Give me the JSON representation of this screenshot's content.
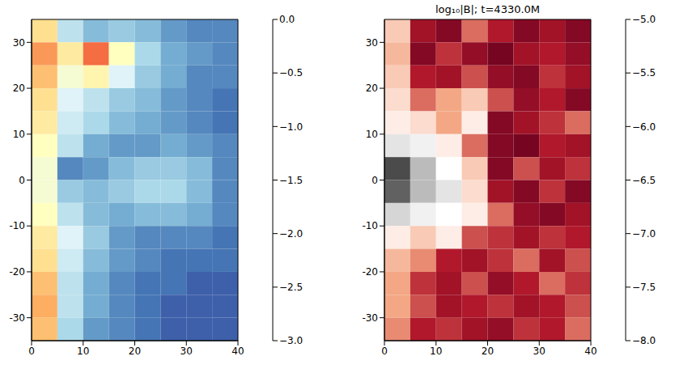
{
  "chart_data": [
    {
      "type": "heatmap",
      "xlim": [
        0,
        40
      ],
      "ylim": [
        -35,
        35
      ],
      "xticks": [
        0,
        10,
        20,
        30,
        40
      ],
      "yticks": [
        -30,
        -20,
        -10,
        0,
        10,
        20,
        30
      ],
      "x_edges": [
        0,
        5,
        10,
        15,
        20,
        25,
        30,
        35,
        40
      ],
      "y_edges": [
        35,
        30,
        25,
        20,
        15,
        10,
        5,
        0,
        -5,
        -10,
        -15,
        -20,
        -25,
        -30,
        -35
      ],
      "cells": [
        [
          -1.2,
          -2.0,
          -2.3,
          -2.2,
          -2.3,
          -2.5,
          -2.6,
          -2.6
        ],
        [
          -0.8,
          -1.3,
          -0.6,
          -1.5,
          -2.1,
          -2.4,
          -2.5,
          -2.6
        ],
        [
          -1.0,
          -1.6,
          -1.4,
          -1.8,
          -2.2,
          -2.4,
          -2.6,
          -2.6
        ],
        [
          -1.2,
          -1.8,
          -2.0,
          -2.2,
          -2.3,
          -2.5,
          -2.6,
          -2.7
        ],
        [
          -1.3,
          -1.9,
          -2.1,
          -2.3,
          -2.4,
          -2.5,
          -2.6,
          -2.7
        ],
        [
          -1.5,
          -2.0,
          -2.4,
          -2.5,
          -2.5,
          -2.4,
          -2.5,
          -2.6
        ],
        [
          -1.6,
          -2.6,
          -2.5,
          -2.3,
          -2.2,
          -2.2,
          -2.3,
          -2.6
        ],
        [
          -1.6,
          -2.2,
          -2.3,
          -2.2,
          -2.1,
          -2.1,
          -2.3,
          -2.6
        ],
        [
          -1.5,
          -2.0,
          -2.3,
          -2.4,
          -2.3,
          -2.3,
          -2.4,
          -2.6
        ],
        [
          -1.3,
          -1.8,
          -2.2,
          -2.5,
          -2.6,
          -2.6,
          -2.6,
          -2.7
        ],
        [
          -1.2,
          -1.9,
          -2.3,
          -2.5,
          -2.6,
          -2.7,
          -2.7,
          -2.7
        ],
        [
          -1.0,
          -2.0,
          -2.4,
          -2.6,
          -2.7,
          -2.7,
          -2.8,
          -2.8
        ],
        [
          -0.9,
          -2.0,
          -2.4,
          -2.6,
          -2.7,
          -2.8,
          -2.8,
          -2.8
        ],
        [
          -1.0,
          -2.1,
          -2.5,
          -2.6,
          -2.7,
          -2.8,
          -2.8,
          -2.8
        ]
      ],
      "colorbar": {
        "range": [
          -3,
          0
        ],
        "ticks": [
          {
            "value": 0,
            "label": "0.0"
          },
          {
            "value": -0.5,
            "label": "−0.5"
          },
          {
            "value": -1,
            "label": "−1.0"
          },
          {
            "value": -1.5,
            "label": "−1.5"
          },
          {
            "value": -2,
            "label": "−2.0"
          },
          {
            "value": -2.5,
            "label": "−2.5"
          },
          {
            "value": -3,
            "label": "−3.0"
          }
        ]
      }
    },
    {
      "type": "heatmap",
      "title": "log₁₀|B|; t=4330.0M",
      "xlim": [
        0,
        40
      ],
      "ylim": [
        -35,
        35
      ],
      "xticks": [
        0,
        10,
        20,
        30,
        40
      ],
      "yticks": [
        -30,
        -20,
        -10,
        0,
        10,
        20,
        30
      ],
      "x_edges": [
        0,
        5,
        10,
        15,
        20,
        25,
        30,
        35,
        40
      ],
      "y_edges": [
        35,
        30,
        25,
        20,
        15,
        10,
        5,
        0,
        -5,
        -10,
        -15,
        -20,
        -25,
        -30,
        -35
      ],
      "cells": [
        [
          -6.8,
          -7.6,
          -7.8,
          -7.2,
          -7.5,
          -7.8,
          -7.6,
          -7.8
        ],
        [
          -6.9,
          -7.8,
          -7.4,
          -7.7,
          -7.9,
          -7.6,
          -7.5,
          -7.7
        ],
        [
          -6.8,
          -7.5,
          -7.6,
          -7.3,
          -7.7,
          -7.8,
          -7.4,
          -7.6
        ],
        [
          -6.7,
          -7.2,
          -7.0,
          -6.8,
          -7.3,
          -7.7,
          -7.5,
          -7.8
        ],
        [
          -6.6,
          -6.7,
          -7.0,
          -6.6,
          -7.8,
          -7.6,
          -7.4,
          -7.2
        ],
        [
          -6.3,
          -6.4,
          -6.6,
          -7.2,
          -7.8,
          -7.9,
          -7.5,
          -7.6
        ],
        [
          -5.5,
          -6.0,
          -6.5,
          -6.8,
          -7.8,
          -7.3,
          -7.6,
          -7.4
        ],
        [
          -5.6,
          -6.0,
          -6.3,
          -6.7,
          -7.6,
          -7.8,
          -7.4,
          -7.8
        ],
        [
          -6.2,
          -6.4,
          -6.5,
          -6.6,
          -7.2,
          -7.7,
          -7.8,
          -7.6
        ],
        [
          -6.6,
          -6.8,
          -6.6,
          -7.3,
          -7.4,
          -7.6,
          -7.4,
          -7.5
        ],
        [
          -6.9,
          -7.1,
          -7.5,
          -7.6,
          -7.4,
          -7.2,
          -7.6,
          -7.3
        ],
        [
          -7.0,
          -7.4,
          -7.6,
          -7.3,
          -7.7,
          -7.5,
          -7.2,
          -7.4
        ],
        [
          -7.0,
          -7.3,
          -7.6,
          -7.5,
          -7.4,
          -7.6,
          -7.5,
          -7.3
        ],
        [
          -7.1,
          -7.5,
          -7.4,
          -7.6,
          -7.7,
          -7.4,
          -7.5,
          -7.2
        ]
      ],
      "colorbar": {
        "range": [
          -8,
          -5
        ],
        "ticks": [
          {
            "value": -5,
            "label": "−5.0"
          },
          {
            "value": -5.5,
            "label": "−5.5"
          },
          {
            "value": -6,
            "label": "−6.0"
          },
          {
            "value": -6.5,
            "label": "−6.5"
          },
          {
            "value": -7,
            "label": "−7.0"
          },
          {
            "value": -7.5,
            "label": "−7.5"
          },
          {
            "value": -8,
            "label": "−8.0"
          }
        ]
      }
    }
  ]
}
